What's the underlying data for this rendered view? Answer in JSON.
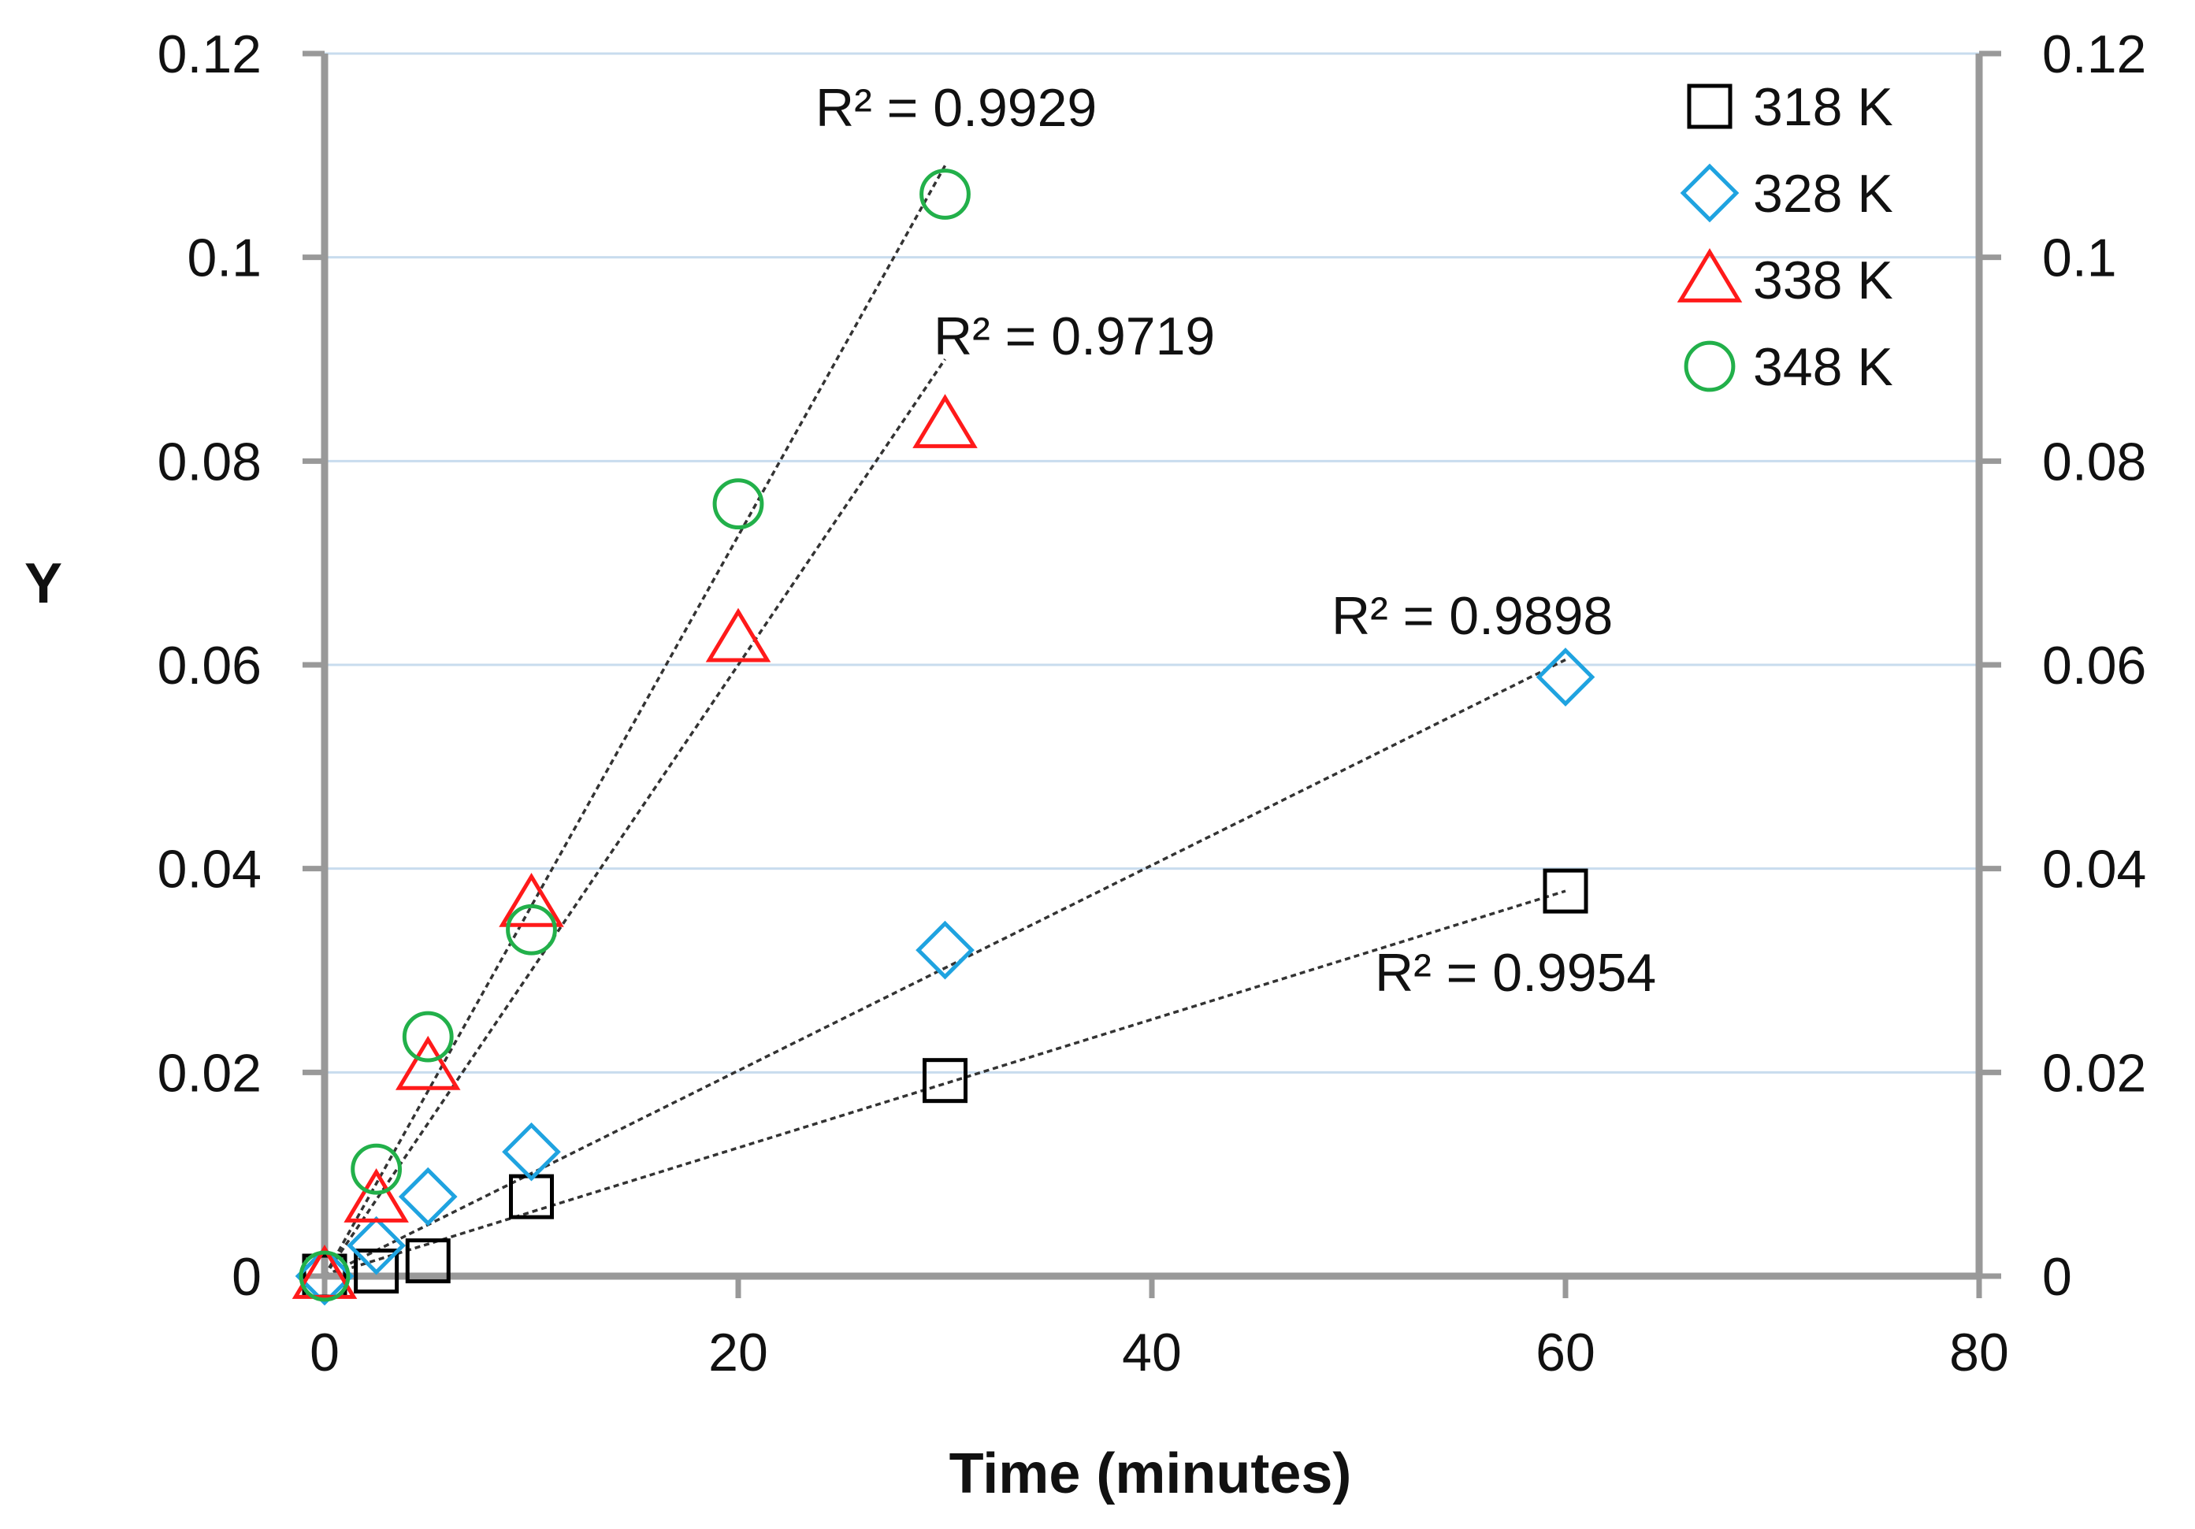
{
  "chart_data": {
    "type": "scatter",
    "title": "",
    "xlabel": "Time (minutes)",
    "ylabel": "Y",
    "xlim": [
      0,
      80
    ],
    "ylim": [
      0,
      0.12
    ],
    "x_ticks": [
      "0",
      "20",
      "40",
      "60",
      "80"
    ],
    "y_ticks": [
      "0",
      "0.02",
      "0.04",
      "0.06",
      "0.08",
      "0.1",
      "0.12"
    ],
    "y2_ticks": [
      "0",
      "0.02",
      "0.04",
      "0.06",
      "0.08",
      "0.1",
      "0.12"
    ],
    "grid": "horizontal",
    "legend_position": "top-right",
    "series": [
      {
        "name": "318 K",
        "marker": "square",
        "color": "#000000",
        "points": [
          [
            0,
            0
          ],
          [
            2.5,
            0.0005
          ],
          [
            5,
            0.0015
          ],
          [
            10,
            0.0078
          ],
          [
            30,
            0.0192
          ],
          [
            60,
            0.0378
          ]
        ],
        "trendline": [
          [
            0,
            0
          ],
          [
            60,
            0.0378
          ]
        ],
        "r2_label": "R² = 0.9954"
      },
      {
        "name": "328 K",
        "marker": "diamond",
        "color": "#1fa3e0",
        "points": [
          [
            0,
            0
          ],
          [
            2.5,
            0.003
          ],
          [
            5,
            0.0078
          ],
          [
            10,
            0.0122
          ],
          [
            30,
            0.032
          ],
          [
            60,
            0.0588
          ]
        ],
        "trendline": [
          [
            0,
            0
          ],
          [
            60,
            0.0605
          ]
        ],
        "r2_label": "R² = 0.9898"
      },
      {
        "name": "338 K",
        "marker": "triangle",
        "color": "#ff1a1a",
        "points": [
          [
            0,
            0
          ],
          [
            2.5,
            0.0075
          ],
          [
            5,
            0.0205
          ],
          [
            10,
            0.0365
          ],
          [
            20,
            0.0625
          ],
          [
            30,
            0.0835
          ]
        ],
        "trendline": [
          [
            0,
            0
          ],
          [
            30,
            0.09
          ]
        ],
        "r2_label": "R² = 0.9719"
      },
      {
        "name": "348 K",
        "marker": "circle",
        "color": "#22b04a",
        "points": [
          [
            0,
            0
          ],
          [
            2.5,
            0.0105
          ],
          [
            5,
            0.0235
          ],
          [
            10,
            0.034
          ],
          [
            20,
            0.0758
          ],
          [
            30,
            0.1062
          ]
        ],
        "trendline": [
          [
            0,
            0
          ],
          [
            30,
            0.109
          ]
        ],
        "r2_label": "R² = 0.9929"
      }
    ],
    "colors": {
      "axis": "#999999",
      "grid": "#c8dcee",
      "trendline": "#333333",
      "text": "#111111"
    }
  }
}
